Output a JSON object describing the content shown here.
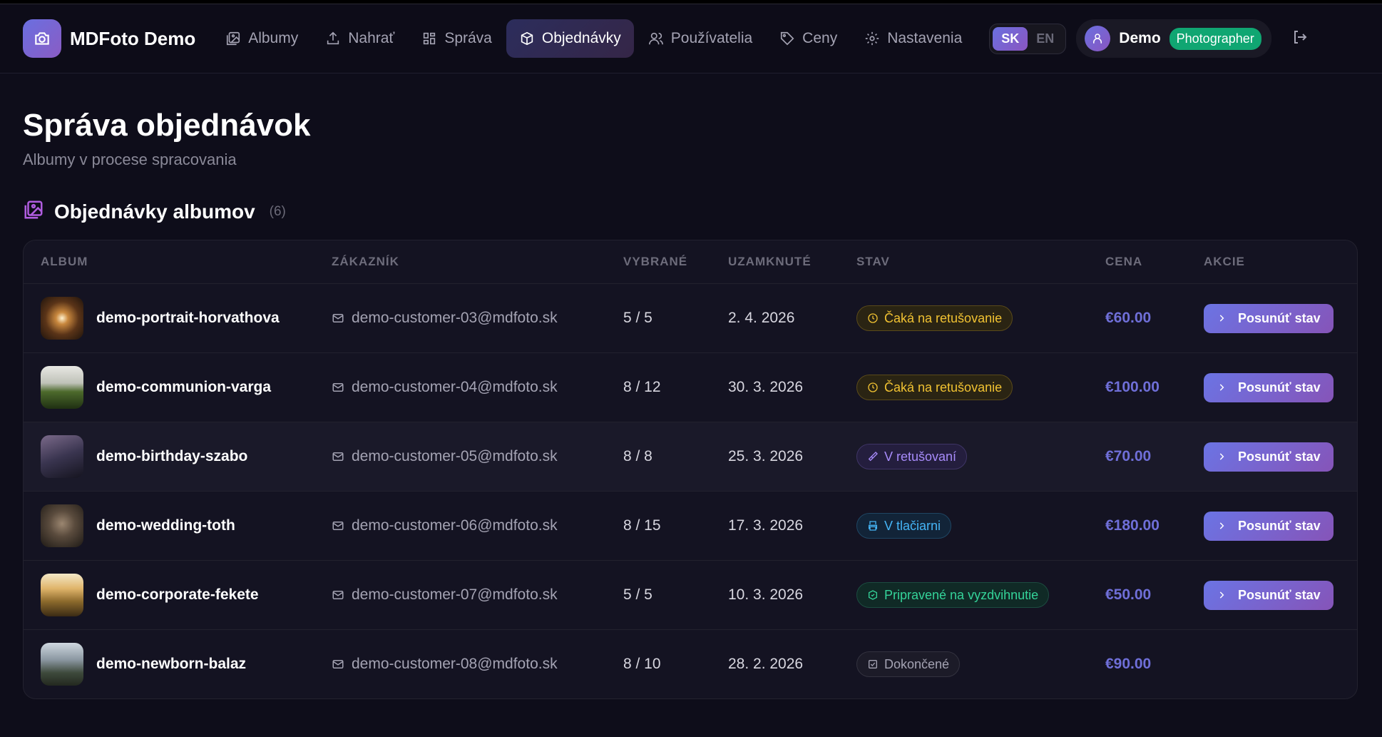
{
  "app": {
    "brand": "MDFoto Demo"
  },
  "nav": [
    {
      "label": "Albumy",
      "icon": "image-icon"
    },
    {
      "label": "Nahrať",
      "icon": "upload-icon"
    },
    {
      "label": "Správa",
      "icon": "grid-icon"
    },
    {
      "label": "Objednávky",
      "icon": "package-icon",
      "active": true
    },
    {
      "label": "Používatelia",
      "icon": "users-icon"
    },
    {
      "label": "Ceny",
      "icon": "tag-icon"
    },
    {
      "label": "Nastavenia",
      "icon": "gear-icon"
    }
  ],
  "lang": {
    "sk": "SK",
    "en": "EN",
    "selected": "SK"
  },
  "user": {
    "name": "Demo",
    "role": "Photographer"
  },
  "page": {
    "title": "Správa objednávok",
    "subtitle": "Albumy v procese spracovania"
  },
  "section": {
    "title": "Objednávky albumov",
    "count": "(6)"
  },
  "table": {
    "headers": [
      "ALBUM",
      "ZÁKAZNÍK",
      "VYBRANÉ",
      "UZAMKNUTÉ",
      "STAV",
      "CENA",
      "AKCIE"
    ],
    "action_label": "Posunúť stav",
    "rows": [
      {
        "album": "demo-portrait-horvathova",
        "customer": "demo-customer-03@mdfoto.sk",
        "selected": "5 / 5",
        "locked": "2. 4. 2026",
        "status": "Čaká na retušovanie",
        "price": "€60.00"
      },
      {
        "album": "demo-communion-varga",
        "customer": "demo-customer-04@mdfoto.sk",
        "selected": "8 / 12",
        "locked": "30. 3. 2026",
        "status": "Čaká na retušovanie",
        "price": "€100.00"
      },
      {
        "album": "demo-birthday-szabo",
        "customer": "demo-customer-05@mdfoto.sk",
        "selected": "8 / 8",
        "locked": "25. 3. 2026",
        "status": "V retušovaní",
        "price": "€70.00"
      },
      {
        "album": "demo-wedding-toth",
        "customer": "demo-customer-06@mdfoto.sk",
        "selected": "8 / 15",
        "locked": "17. 3. 2026",
        "status": "V tlačiarni",
        "price": "€180.00"
      },
      {
        "album": "demo-corporate-fekete",
        "customer": "demo-customer-07@mdfoto.sk",
        "selected": "5 / 5",
        "locked": "10. 3. 2026",
        "status": "Pripravené na vyzdvihnutie",
        "price": "€50.00"
      },
      {
        "album": "demo-newborn-balaz",
        "customer": "demo-customer-08@mdfoto.sk",
        "selected": "8 / 10",
        "locked": "28. 2. 2026",
        "status": "Dokončené",
        "price": "€90.00"
      }
    ]
  },
  "colors": {
    "accent": "#6b74e4",
    "price": "#6f6fd8",
    "role_badge": "#10a672"
  }
}
